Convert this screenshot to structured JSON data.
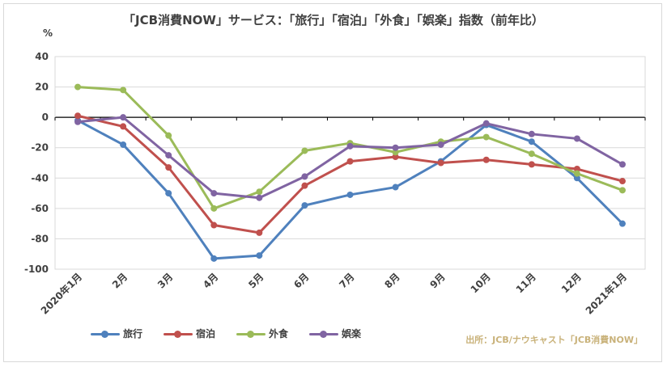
{
  "chart_data": {
    "type": "line",
    "title": "「JCB消費NOW」サービス：「旅行」「宿泊」「外食」「娯楽」指数（前年比）",
    "ylabel": "%",
    "ylim": [
      -100,
      40
    ],
    "yticks": [
      40,
      20,
      0,
      -20,
      -40,
      -60,
      -80,
      -100
    ],
    "grid": true,
    "legend_position": "bottom-left",
    "categories": [
      "2020年1月",
      "2月",
      "3月",
      "4月",
      "5月",
      "6月",
      "7月",
      "8月",
      "9月",
      "10月",
      "11月",
      "12月",
      "2021年1月"
    ],
    "series": [
      {
        "name": "旅行",
        "color": "#4f81bd",
        "values": [
          -2,
          -18,
          -50,
          -93,
          -91,
          -58,
          -51,
          -46,
          -29,
          -5,
          -16,
          -40,
          -70
        ]
      },
      {
        "name": "宿泊",
        "color": "#c0504d",
        "values": [
          1,
          -6,
          -33,
          -71,
          -76,
          -45,
          -29,
          -26,
          -30,
          -28,
          -31,
          -34,
          -42
        ]
      },
      {
        "name": "外食",
        "color": "#9bbb59",
        "values": [
          20,
          18,
          -12,
          -60,
          -49,
          -22,
          -17,
          -23,
          -16,
          -13,
          -24,
          -37,
          -48
        ]
      },
      {
        "name": "娯楽",
        "color": "#8064a2",
        "values": [
          -3,
          0,
          -25,
          -50,
          -53,
          -39,
          -19,
          -20,
          -18,
          -4,
          -11,
          -14,
          -31
        ]
      }
    ],
    "source": "出所：JCB/ナウキャスト「JCB消費NOW」"
  }
}
